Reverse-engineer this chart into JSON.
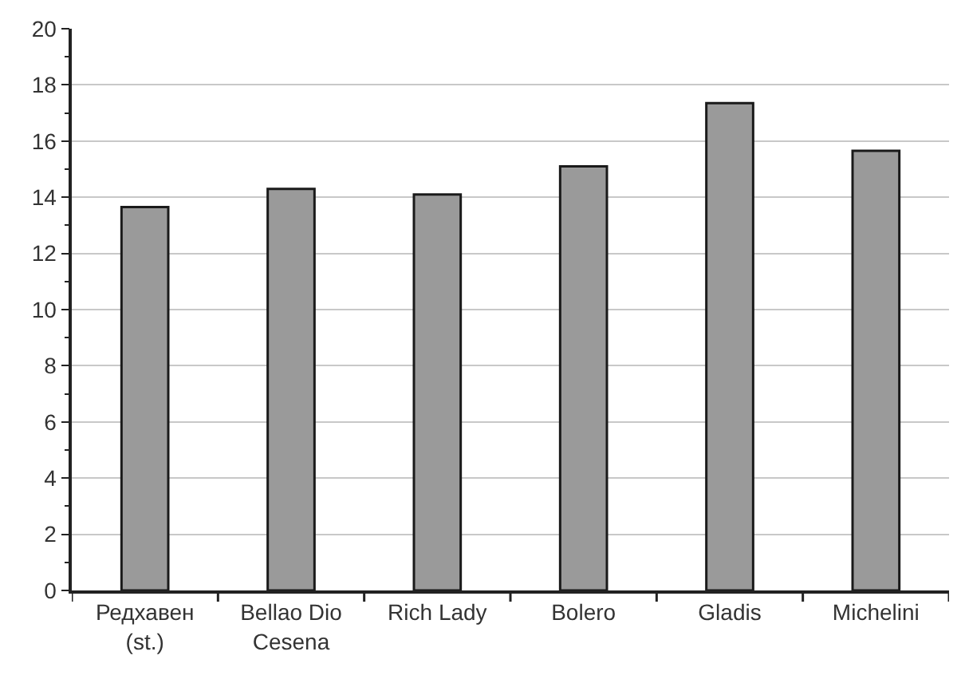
{
  "chart_data": {
    "type": "bar",
    "categories": [
      "Редхавен (st.)",
      "Bellao Dio Cesena",
      "Rich Lady",
      "Bolero",
      "Gladis",
      "Michelini"
    ],
    "values": [
      13.65,
      14.3,
      14.1,
      15.1,
      17.35,
      15.65
    ],
    "color": "#9a9a9a",
    "ylim": [
      0,
      20
    ],
    "yticks": [
      0,
      2,
      4,
      6,
      8,
      10,
      12,
      14,
      16,
      18,
      20
    ],
    "grid": "y"
  }
}
